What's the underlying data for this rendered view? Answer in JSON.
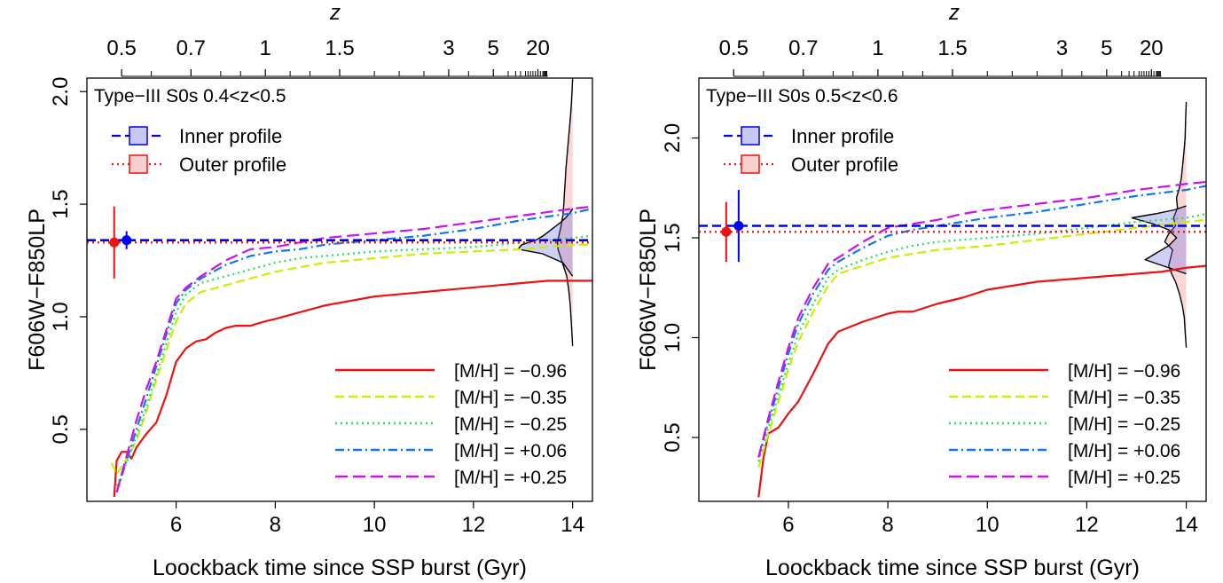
{
  "chart_data": [
    {
      "type": "line",
      "panel_title": "Type−III S0s 0.4<z<0.5",
      "xlabel": "Loockback time since SSP burst (Gyr)",
      "ylabel": "F606W−F850LP",
      "top_axis_label": "z",
      "xlim": [
        4.2,
        14.4
      ],
      "ylim": [
        0.18,
        2.06
      ],
      "x_ticks": [
        6,
        8,
        10,
        12,
        14
      ],
      "x_tick_labels": [
        "6",
        "8",
        "10",
        "12",
        "14"
      ],
      "y_ticks": [
        0.5,
        1.0,
        1.5,
        2.0
      ],
      "y_tick_labels": [
        "0.5",
        "1.0",
        "1.5",
        "2.0"
      ],
      "z_labels": [
        {
          "lookback": 4.9,
          "text": "0.5"
        },
        {
          "lookback": 6.3,
          "text": "0.7"
        },
        {
          "lookback": 7.8,
          "text": "1"
        },
        {
          "lookback": 9.3,
          "text": "1.5"
        },
        {
          "lookback": 11.5,
          "text": "3"
        },
        {
          "lookback": 12.4,
          "text": "5"
        },
        {
          "lookback": 13.3,
          "text": "20"
        }
      ],
      "z_minor_ticks": [
        5.5,
        6.9,
        7.3,
        8.3,
        8.7,
        10.0,
        10.5,
        11.0,
        11.9,
        12.7,
        12.85,
        12.95,
        13.05,
        13.1,
        13.15,
        13.2,
        13.25,
        13.3,
        13.35,
        13.4,
        13.42,
        13.44,
        13.46,
        13.48
      ],
      "legend_top": [
        {
          "label": "Inner profile",
          "color": "#0000ee",
          "fill": "#c8c8f5",
          "dash": "10,5"
        },
        {
          "label": "Outer profile",
          "color": "#ee1111",
          "fill": "#f8cfcf",
          "dash": "2,4"
        }
      ],
      "inner_profile": {
        "color": "#0000ee",
        "y": 1.34,
        "y_err": 0.04,
        "x_point": 5.0
      },
      "outer_profile": {
        "color": "#ee1111",
        "y": 1.33,
        "y_err": 0.16,
        "x_point": 4.75
      },
      "legend_placement": "bottom-right",
      "series": [
        {
          "name": "[M/H] = −0.96",
          "color": "#ee1111",
          "dash": "",
          "width": 2.2,
          "x": [
            4.75,
            4.8,
            4.9,
            5.0,
            5.1,
            5.2,
            5.4,
            5.6,
            5.8,
            6.0,
            6.2,
            6.4,
            6.6,
            6.8,
            7.0,
            7.2,
            7.5,
            7.8,
            8.0,
            8.5,
            9.0,
            9.5,
            10.0,
            10.5,
            11.0,
            11.5,
            12.0,
            12.5,
            13.0,
            13.5,
            14.0,
            14.4
          ],
          "y": [
            0.2,
            0.36,
            0.4,
            0.4,
            0.37,
            0.42,
            0.48,
            0.53,
            0.65,
            0.8,
            0.86,
            0.89,
            0.9,
            0.93,
            0.95,
            0.96,
            0.96,
            0.98,
            0.99,
            1.02,
            1.05,
            1.07,
            1.09,
            1.1,
            1.11,
            1.12,
            1.13,
            1.14,
            1.15,
            1.16,
            1.16,
            1.16
          ]
        },
        {
          "name": "[M/H] = −0.35",
          "color": "#ccee00",
          "dash": "10,5",
          "width": 2.2,
          "x": [
            4.7,
            4.8,
            5.0,
            5.2,
            5.4,
            5.6,
            5.8,
            6.0,
            6.2,
            6.5,
            7.0,
            7.5,
            8.0,
            8.5,
            9.0,
            9.5,
            10.0,
            11.0,
            12.0,
            13.0,
            14.0,
            14.4
          ],
          "y": [
            0.35,
            0.3,
            0.37,
            0.45,
            0.58,
            0.72,
            0.85,
            0.98,
            1.06,
            1.11,
            1.14,
            1.17,
            1.2,
            1.22,
            1.24,
            1.25,
            1.26,
            1.28,
            1.29,
            1.3,
            1.32,
            1.32
          ]
        },
        {
          "name": "[M/H] = −0.25",
          "color": "#22dd66",
          "dash": "2,4",
          "width": 2.2,
          "x": [
            4.8,
            5.0,
            5.2,
            5.4,
            5.6,
            5.8,
            6.0,
            6.2,
            6.5,
            7.0,
            7.5,
            8.0,
            8.5,
            9.0,
            9.5,
            10.0,
            11.0,
            12.0,
            13.0,
            14.0,
            14.4
          ],
          "y": [
            0.25,
            0.35,
            0.47,
            0.6,
            0.74,
            0.88,
            1.02,
            1.1,
            1.15,
            1.18,
            1.21,
            1.24,
            1.26,
            1.27,
            1.28,
            1.29,
            1.3,
            1.31,
            1.33,
            1.35,
            1.36
          ]
        },
        {
          "name": "[M/H] = +0.06",
          "color": "#1177ee",
          "dash": "10,4,2,4",
          "width": 2.2,
          "x": [
            4.8,
            5.0,
            5.2,
            5.4,
            5.6,
            5.8,
            6.0,
            6.2,
            6.5,
            7.0,
            7.5,
            8.0,
            8.5,
            9.0,
            9.5,
            10.0,
            11.0,
            12.0,
            13.0,
            14.0,
            14.4
          ],
          "y": [
            0.22,
            0.36,
            0.5,
            0.64,
            0.78,
            0.92,
            1.06,
            1.12,
            1.17,
            1.23,
            1.27,
            1.29,
            1.3,
            1.32,
            1.33,
            1.34,
            1.36,
            1.39,
            1.43,
            1.46,
            1.48
          ]
        },
        {
          "name": "[M/H] = +0.25",
          "color": "#cc11ee",
          "dash": "14,6",
          "width": 2.2,
          "x": [
            4.8,
            5.0,
            5.2,
            5.4,
            5.6,
            5.8,
            6.0,
            6.2,
            6.5,
            7.0,
            7.5,
            8.0,
            8.5,
            9.0,
            9.5,
            10.0,
            11.0,
            12.0,
            13.0,
            14.0,
            14.4
          ],
          "y": [
            0.22,
            0.38,
            0.54,
            0.68,
            0.8,
            0.94,
            1.08,
            1.13,
            1.18,
            1.25,
            1.3,
            1.31,
            1.33,
            1.35,
            1.36,
            1.37,
            1.39,
            1.42,
            1.45,
            1.48,
            1.49
          ]
        }
      ],
      "distributions": [
        {
          "name": "Outer profile",
          "color": "#ee1111",
          "fill": "rgba(240,120,120,0.30)",
          "x_base": 14.0,
          "y": [
            0.87,
            0.95,
            1.05,
            1.12,
            1.18,
            1.22,
            1.26,
            1.3,
            1.33,
            1.36,
            1.4,
            1.45,
            1.5,
            1.55,
            1.6,
            1.65,
            1.7,
            1.75,
            1.8,
            1.85,
            1.9,
            1.95,
            2.0,
            2.06
          ],
          "w": [
            0.0,
            0.05,
            0.12,
            0.2,
            0.3,
            0.45,
            0.6,
            0.75,
            0.78,
            0.7,
            0.6,
            0.5,
            0.45,
            0.42,
            0.38,
            0.35,
            0.3,
            0.25,
            0.2,
            0.15,
            0.1,
            0.06,
            0.03,
            0.0
          ]
        },
        {
          "name": "Inner profile",
          "color": "#0000ee",
          "fill": "rgba(110,110,230,0.32)",
          "x_base": 14.0,
          "y": [
            1.18,
            1.24,
            1.28,
            1.3,
            1.32,
            1.34,
            1.36,
            1.38,
            1.4,
            1.42,
            1.44,
            1.46,
            1.48
          ],
          "w": [
            0.0,
            0.5,
            1.55,
            2.8,
            2.6,
            1.9,
            1.5,
            1.2,
            0.9,
            0.6,
            0.35,
            0.15,
            0.0
          ]
        }
      ]
    },
    {
      "type": "line",
      "panel_title": "Type−III S0s 0.5<z<0.6",
      "xlabel": "Loockback time since SSP burst (Gyr)",
      "ylabel": "F606W−F850LP",
      "top_axis_label": "z",
      "xlim": [
        4.2,
        14.4
      ],
      "ylim": [
        0.18,
        2.3
      ],
      "x_ticks": [
        6,
        8,
        10,
        12,
        14
      ],
      "x_tick_labels": [
        "6",
        "8",
        "10",
        "12",
        "14"
      ],
      "y_ticks": [
        0.5,
        1.0,
        1.5,
        2.0
      ],
      "y_tick_labels": [
        "0.5",
        "1.0",
        "1.5",
        "2.0"
      ],
      "z_labels": [
        {
          "lookback": 4.9,
          "text": "0.5"
        },
        {
          "lookback": 6.3,
          "text": "0.7"
        },
        {
          "lookback": 7.8,
          "text": "1"
        },
        {
          "lookback": 9.3,
          "text": "1.5"
        },
        {
          "lookback": 11.5,
          "text": "3"
        },
        {
          "lookback": 12.4,
          "text": "5"
        },
        {
          "lookback": 13.3,
          "text": "20"
        }
      ],
      "z_minor_ticks": [
        5.5,
        6.9,
        7.3,
        8.3,
        8.7,
        10.0,
        10.5,
        11.0,
        11.9,
        12.7,
        12.85,
        12.95,
        13.05,
        13.1,
        13.15,
        13.2,
        13.25,
        13.3,
        13.35,
        13.4,
        13.42,
        13.44,
        13.46,
        13.48
      ],
      "legend_top": [
        {
          "label": "Inner profile",
          "color": "#0000ee",
          "fill": "#c8c8f5",
          "dash": "10,5"
        },
        {
          "label": "Outer profile",
          "color": "#ee1111",
          "fill": "#f8cfcf",
          "dash": "2,4"
        }
      ],
      "inner_profile": {
        "color": "#0000ee",
        "y": 1.56,
        "y_err": 0.18,
        "x_point": 5.0
      },
      "outer_profile": {
        "color": "#ee1111",
        "y": 1.53,
        "y_err": 0.15,
        "x_point": 4.75
      },
      "legend_placement": "bottom-right",
      "series": [
        {
          "name": "[M/H] = −0.96",
          "color": "#ee1111",
          "dash": "",
          "width": 2.2,
          "x": [
            5.4,
            5.5,
            5.6,
            5.8,
            6.0,
            6.2,
            6.5,
            6.8,
            7.0,
            7.5,
            8.0,
            8.2,
            8.5,
            9.0,
            9.5,
            10.0,
            10.5,
            11.0,
            11.5,
            12.0,
            12.5,
            13.0,
            13.5,
            14.0,
            14.4
          ],
          "y": [
            0.2,
            0.4,
            0.52,
            0.55,
            0.62,
            0.68,
            0.82,
            0.97,
            1.03,
            1.08,
            1.12,
            1.13,
            1.13,
            1.17,
            1.2,
            1.24,
            1.26,
            1.28,
            1.29,
            1.3,
            1.31,
            1.32,
            1.33,
            1.35,
            1.36
          ]
        },
        {
          "name": "[M/H] = −0.35",
          "color": "#ccee00",
          "dash": "10,5",
          "width": 2.2,
          "x": [
            5.4,
            5.6,
            5.8,
            6.0,
            6.2,
            6.5,
            6.8,
            7.0,
            7.5,
            8.0,
            8.5,
            9.0,
            9.5,
            10.0,
            11.0,
            12.0,
            13.0,
            14.0,
            14.4
          ],
          "y": [
            0.35,
            0.52,
            0.68,
            0.84,
            0.98,
            1.13,
            1.26,
            1.32,
            1.36,
            1.4,
            1.42,
            1.44,
            1.45,
            1.46,
            1.49,
            1.52,
            1.55,
            1.58,
            1.59
          ]
        },
        {
          "name": "[M/H] = −0.25",
          "color": "#22dd66",
          "dash": "2,4",
          "width": 2.2,
          "x": [
            5.4,
            5.6,
            5.8,
            6.0,
            6.2,
            6.5,
            6.8,
            7.0,
            7.5,
            8.0,
            8.5,
            9.0,
            9.5,
            10.0,
            11.0,
            12.0,
            13.0,
            14.0,
            14.4
          ],
          "y": [
            0.38,
            0.55,
            0.71,
            0.87,
            1.02,
            1.17,
            1.3,
            1.34,
            1.39,
            1.43,
            1.46,
            1.48,
            1.49,
            1.5,
            1.52,
            1.55,
            1.58,
            1.6,
            1.62
          ]
        },
        {
          "name": "[M/H] = +0.06",
          "color": "#1177ee",
          "dash": "10,4,2,4",
          "width": 2.2,
          "x": [
            5.4,
            5.6,
            5.8,
            6.0,
            6.2,
            6.5,
            6.8,
            7.0,
            7.5,
            8.0,
            8.5,
            9.0,
            9.5,
            10.0,
            11.0,
            12.0,
            13.0,
            14.0,
            14.4
          ],
          "y": [
            0.4,
            0.58,
            0.75,
            0.92,
            1.07,
            1.22,
            1.34,
            1.38,
            1.45,
            1.51,
            1.54,
            1.56,
            1.58,
            1.6,
            1.63,
            1.67,
            1.71,
            1.74,
            1.76
          ]
        },
        {
          "name": "[M/H] = +0.25",
          "color": "#cc11ee",
          "dash": "14,6",
          "width": 2.2,
          "x": [
            5.4,
            5.6,
            5.8,
            6.0,
            6.2,
            6.5,
            6.8,
            7.0,
            7.5,
            8.0,
            8.5,
            9.0,
            9.5,
            10.0,
            11.0,
            12.0,
            13.0,
            14.0,
            14.4
          ],
          "y": [
            0.4,
            0.6,
            0.78,
            0.95,
            1.1,
            1.25,
            1.37,
            1.4,
            1.48,
            1.55,
            1.57,
            1.59,
            1.62,
            1.64,
            1.67,
            1.7,
            1.74,
            1.77,
            1.78
          ]
        }
      ],
      "distributions": [
        {
          "name": "Outer profile",
          "color": "#ee1111",
          "fill": "rgba(240,120,120,0.30)",
          "x_base": 14.0,
          "y": [
            0.95,
            1.02,
            1.1,
            1.16,
            1.22,
            1.28,
            1.32,
            1.36,
            1.4,
            1.44,
            1.48,
            1.52,
            1.56,
            1.6,
            1.65,
            1.7,
            1.75,
            1.8,
            1.85,
            1.9,
            1.95,
            2.0,
            2.1,
            2.18
          ],
          "w": [
            0.0,
            0.05,
            0.1,
            0.2,
            0.35,
            0.55,
            0.75,
            0.9,
            0.8,
            0.7,
            1.1,
            0.9,
            0.55,
            0.65,
            0.45,
            0.5,
            0.35,
            0.25,
            0.2,
            0.15,
            0.1,
            0.06,
            0.03,
            0.0
          ]
        },
        {
          "name": "Inner profile",
          "color": "#0000ee",
          "fill": "rgba(110,110,230,0.32)",
          "x_base": 14.0,
          "y": [
            1.32,
            1.36,
            1.39,
            1.42,
            1.46,
            1.5,
            1.54,
            1.57,
            1.6,
            1.62,
            1.64,
            1.66
          ],
          "w": [
            0.0,
            1.2,
            2.1,
            1.6,
            0.9,
            0.5,
            0.9,
            1.7,
            2.8,
            1.6,
            0.6,
            0.0
          ]
        }
      ]
    }
  ]
}
